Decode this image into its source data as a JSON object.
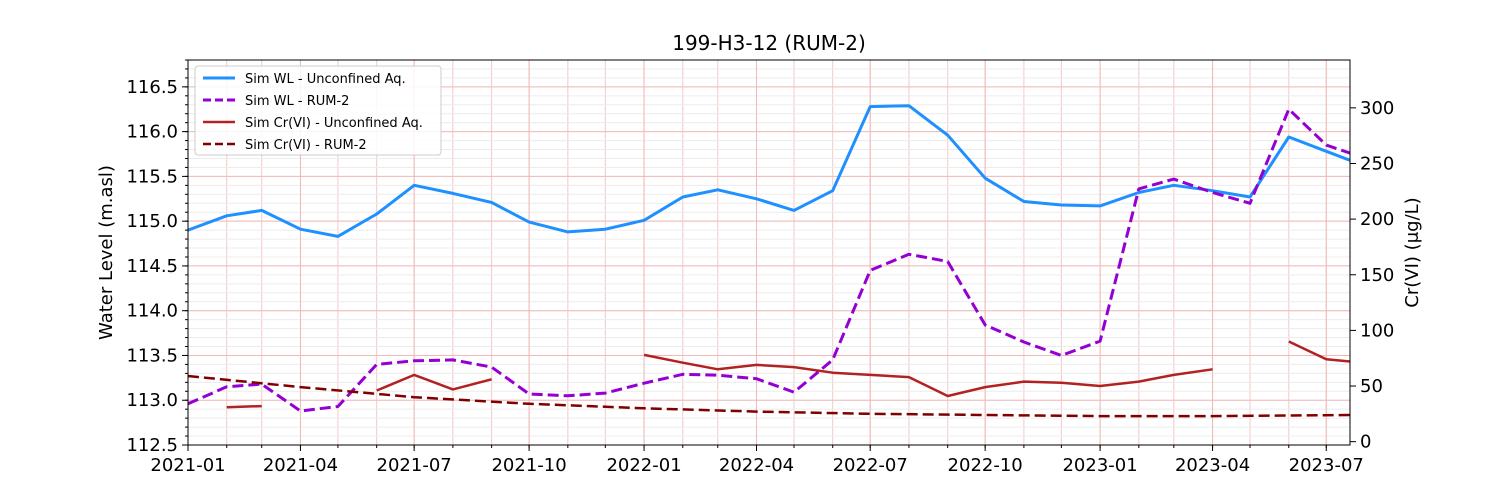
{
  "chart_data": {
    "type": "line",
    "title": "199-H3-12 (RUM-2)",
    "xlabel": "",
    "ylabel_left": "Water Level (m.asl)",
    "ylabel_right": "Cr(VI) (μg/L)",
    "x_ticks": [
      "2021-01",
      "2021-04",
      "2021-07",
      "2021-10",
      "2022-01",
      "2022-04",
      "2022-07",
      "2022-10",
      "2023-01",
      "2023-04",
      "2023-07"
    ],
    "xlim": [
      "2021-01-01",
      "2023-07-20"
    ],
    "ylim_left": [
      112.5,
      116.8
    ],
    "ylim_right": [
      -3,
      343
    ],
    "yticks_left": [
      "112.5",
      "113.0",
      "113.5",
      "114.0",
      "114.5",
      "115.0",
      "115.5",
      "116.0",
      "116.5"
    ],
    "yticks_right": [
      "0",
      "50",
      "100",
      "150",
      "200",
      "250",
      "300"
    ],
    "grid": true,
    "legend_position": "upper-left",
    "series": [
      {
        "name": "Sim WL - Unconfined Aq.",
        "axis": "left",
        "color": "#1e90ff",
        "style": "solid",
        "width": 3,
        "segments": [
          [
            [
              "2021-01-01",
              114.9
            ],
            [
              "2021-02-01",
              115.06
            ],
            [
              "2021-03-01",
              115.12
            ],
            [
              "2021-04-01",
              114.91
            ],
            [
              "2021-05-01",
              114.83
            ],
            [
              "2021-06-01",
              115.08
            ],
            [
              "2021-07-01",
              115.4
            ],
            [
              "2021-08-01",
              115.31
            ],
            [
              "2021-09-01",
              115.21
            ],
            [
              "2021-10-01",
              114.99
            ],
            [
              "2021-11-01",
              114.88
            ],
            [
              "2021-12-01",
              114.91
            ],
            [
              "2022-01-01",
              115.01
            ],
            [
              "2022-02-01",
              115.27
            ],
            [
              "2022-03-01",
              115.35
            ],
            [
              "2022-04-01",
              115.25
            ],
            [
              "2022-05-01",
              115.12
            ],
            [
              "2022-06-01",
              115.34
            ],
            [
              "2022-07-01",
              116.28
            ],
            [
              "2022-08-01",
              116.29
            ],
            [
              "2022-09-01",
              115.96
            ],
            [
              "2022-10-01",
              115.48
            ],
            [
              "2022-11-01",
              115.22
            ],
            [
              "2022-12-01",
              115.18
            ],
            [
              "2023-01-01",
              115.17
            ],
            [
              "2023-02-01",
              115.32
            ],
            [
              "2023-03-01",
              115.4
            ],
            [
              "2023-04-01",
              115.34
            ],
            [
              "2023-05-01",
              115.27
            ],
            [
              "2023-06-01",
              115.94
            ],
            [
              "2023-07-01",
              115.78
            ],
            [
              "2023-07-20",
              115.68
            ]
          ]
        ]
      },
      {
        "name": "Sim WL - RUM-2",
        "axis": "left",
        "color": "#9400d3",
        "style": "dashed",
        "width": 3,
        "segments": [
          [
            [
              "2021-01-01",
              112.96
            ],
            [
              "2021-02-01",
              113.15
            ],
            [
              "2021-03-01",
              113.18
            ],
            [
              "2021-04-01",
              112.88
            ],
            [
              "2021-05-01",
              112.93
            ],
            [
              "2021-06-01",
              113.4
            ],
            [
              "2021-07-01",
              113.44
            ],
            [
              "2021-08-01",
              113.45
            ],
            [
              "2021-09-01",
              113.37
            ],
            [
              "2021-10-01",
              113.07
            ],
            [
              "2021-11-01",
              113.05
            ],
            [
              "2021-12-01",
              113.08
            ],
            [
              "2022-01-01",
              113.19
            ],
            [
              "2022-02-01",
              113.29
            ],
            [
              "2022-03-01",
              113.28
            ],
            [
              "2022-04-01",
              113.24
            ],
            [
              "2022-05-01",
              113.09
            ],
            [
              "2022-06-01",
              113.45
            ],
            [
              "2022-07-01",
              114.45
            ],
            [
              "2022-08-01",
              114.63
            ],
            [
              "2022-09-01",
              114.55
            ],
            [
              "2022-10-01",
              113.84
            ],
            [
              "2022-11-01",
              113.65
            ],
            [
              "2022-12-01",
              113.5
            ],
            [
              "2023-01-01",
              113.66
            ],
            [
              "2023-02-01",
              115.36
            ],
            [
              "2023-03-01",
              115.47
            ],
            [
              "2023-04-01",
              115.32
            ],
            [
              "2023-05-01",
              115.2
            ],
            [
              "2023-06-01",
              116.25
            ],
            [
              "2023-07-01",
              115.85
            ],
            [
              "2023-07-20",
              115.76
            ]
          ]
        ]
      },
      {
        "name": "Sim Cr(VI) - Unconfined Aq.",
        "axis": "right",
        "color": "#b22222",
        "style": "solid",
        "width": 2.5,
        "segments": [
          [
            [
              "2021-02-01",
              31
            ],
            [
              "2021-03-01",
              32
            ]
          ],
          [
            [
              "2021-06-01",
              46
            ],
            [
              "2021-07-01",
              60
            ],
            [
              "2021-08-01",
              47
            ],
            [
              "2021-09-01",
              56
            ]
          ],
          [
            [
              "2022-01-01",
              78
            ],
            [
              "2022-02-01",
              71
            ],
            [
              "2022-03-01",
              65
            ],
            [
              "2022-04-01",
              69
            ],
            [
              "2022-05-01",
              67
            ],
            [
              "2022-06-01",
              62
            ],
            [
              "2022-07-01",
              60
            ],
            [
              "2022-08-01",
              58
            ],
            [
              "2022-09-01",
              41
            ],
            [
              "2022-10-01",
              49
            ],
            [
              "2022-11-01",
              54
            ],
            [
              "2022-12-01",
              53
            ],
            [
              "2023-01-01",
              50
            ],
            [
              "2023-02-01",
              54
            ],
            [
              "2023-03-01",
              60
            ],
            [
              "2023-04-01",
              65
            ]
          ],
          [
            [
              "2023-06-01",
              90
            ],
            [
              "2023-07-01",
              74
            ],
            [
              "2023-07-20",
              72
            ]
          ]
        ]
      },
      {
        "name": "Sim Cr(VI) - RUM-2",
        "axis": "right",
        "color": "#800000",
        "style": "dashed",
        "width": 2.5,
        "segments": [
          [
            [
              "2021-01-01",
              59
            ],
            [
              "2021-04-01",
              49
            ],
            [
              "2021-07-01",
              40
            ],
            [
              "2021-10-01",
              34
            ],
            [
              "2022-01-01",
              30
            ],
            [
              "2022-04-01",
              27
            ],
            [
              "2022-07-01",
              25
            ],
            [
              "2022-10-01",
              24
            ],
            [
              "2023-01-01",
              23
            ],
            [
              "2023-04-01",
              23
            ],
            [
              "2023-07-20",
              24
            ]
          ]
        ]
      }
    ]
  }
}
